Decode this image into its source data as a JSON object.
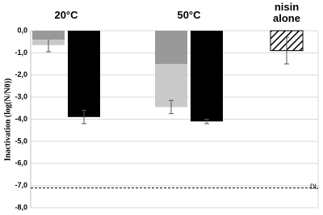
{
  "chart_data": {
    "type": "bar",
    "y_label": "Inactivation  (log(N/N0))",
    "categories": [
      "20°C",
      "50°C",
      "nisin alone"
    ],
    "series": [
      {
        "color": "#c9c9c9",
        "position": "left",
        "values": [
          -0.65,
          -3.45,
          null
        ],
        "errors": [
          0.3,
          0.3,
          null
        ]
      },
      {
        "color": "#999999",
        "position": "left",
        "values": [
          -0.4,
          -1.5,
          null
        ]
      },
      {
        "color": "#000000",
        "position": "right",
        "values": [
          -3.9,
          -4.1,
          null
        ],
        "errors": [
          0.3,
          0.1,
          null
        ]
      },
      {
        "color": "#000000",
        "pattern": "hatch",
        "position": "center",
        "values": [
          null,
          null,
          -0.9
        ],
        "errors": [
          null,
          null,
          0.6
        ]
      }
    ],
    "ylim": [
      0,
      -8
    ],
    "yticks": [
      {
        "value": 0,
        "label": "0,0"
      },
      {
        "value": -1,
        "label": "-1,0"
      },
      {
        "value": -2,
        "label": "-2,0"
      },
      {
        "value": -3,
        "label": "-3,0"
      },
      {
        "value": -4,
        "label": "-4,0"
      },
      {
        "value": -5,
        "label": "-5,0"
      },
      {
        "value": -6,
        "label": "-6,0"
      },
      {
        "value": -7,
        "label": "-7,0"
      },
      {
        "value": -8,
        "label": "-8,0"
      }
    ],
    "dl_line": {
      "value": -7.1,
      "label": "DL"
    },
    "grid": true
  }
}
